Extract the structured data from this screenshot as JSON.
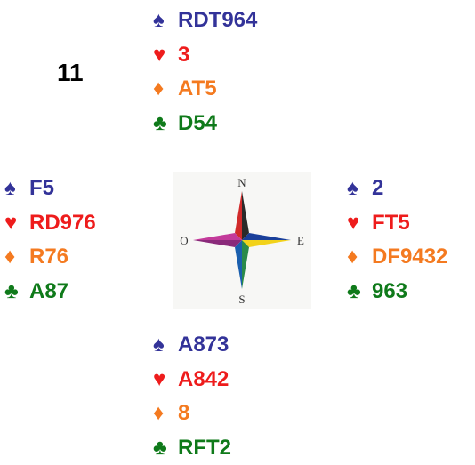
{
  "board": "11",
  "suits": [
    "♠",
    "♥",
    "♦",
    "♣"
  ],
  "compass": {
    "north": "N",
    "east": "E",
    "south": "S",
    "west": "O"
  },
  "hands": {
    "north": [
      "RDT964",
      "3",
      "AT5",
      "D54"
    ],
    "west": [
      "F5",
      "RD976",
      "R76",
      "A87"
    ],
    "east": [
      "2",
      "FT5",
      "DF9432",
      "963"
    ],
    "south": [
      "A873",
      "A842",
      "8",
      "RFT2"
    ]
  }
}
